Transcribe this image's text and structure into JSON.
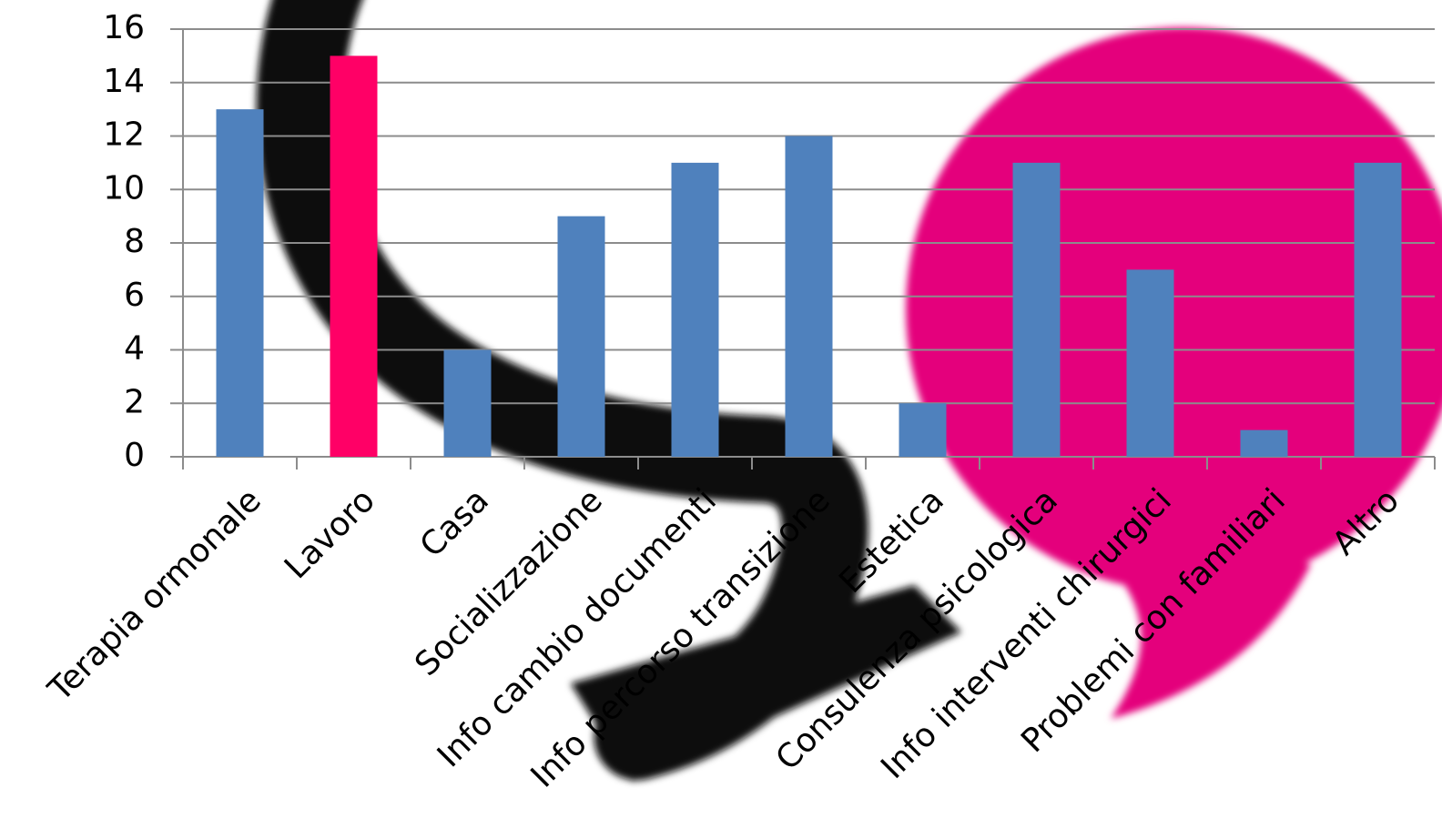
{
  "chart_data": {
    "type": "bar",
    "categories": [
      "Terapia ormonale",
      "Lavoro",
      "Casa",
      "Socializzazione",
      "Info cambio documenti",
      "Info percorso transizione",
      "Estetica",
      "Consulenza psicologica",
      "Info interventi chirurgici",
      "Problemi con familiari",
      "Altro"
    ],
    "values": [
      13,
      15,
      4,
      9,
      11,
      12,
      2,
      11,
      7,
      1,
      11
    ],
    "colors": [
      "#4f81bd",
      "#ff0066",
      "#4f81bd",
      "#4f81bd",
      "#4f81bd",
      "#4f81bd",
      "#4f81bd",
      "#4f81bd",
      "#4f81bd",
      "#4f81bd",
      "#4f81bd"
    ],
    "ylim": [
      0,
      16
    ],
    "yticks": [
      0,
      2,
      4,
      6,
      8,
      10,
      12,
      14,
      16
    ],
    "grid": true
  }
}
